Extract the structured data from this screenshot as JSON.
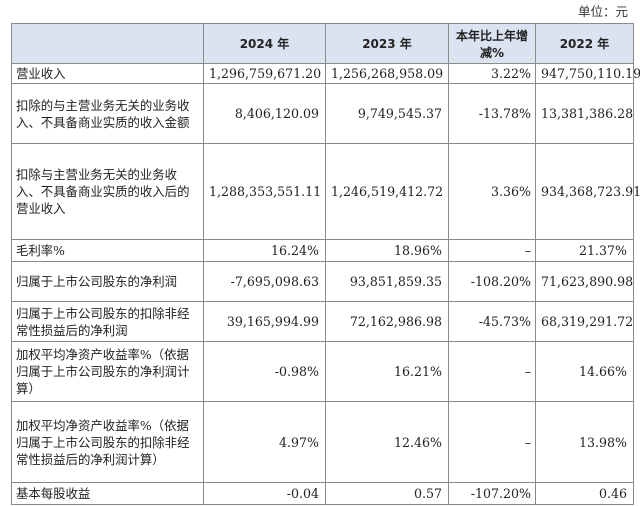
{
  "unit_label": "单位：元",
  "columns": {
    "item": "",
    "y2024": "2024 年",
    "y2023": "2023 年",
    "change": "本年比上年增减%",
    "y2022": "2022 年"
  },
  "rows": [
    {
      "label": "营业收入",
      "y2024": "1,296,759,671.20",
      "y2023": "1,256,268,958.09",
      "change": "3.22%",
      "y2022": "947,750,110.19"
    },
    {
      "label": "扣除的与主营业务无关的业务收入、不具备商业实质的收入金额",
      "y2024": "8,406,120.09",
      "y2023": "9,749,545.37",
      "change": "-13.78%",
      "y2022": "13,381,386.28"
    },
    {
      "label": "扣除与主营业务无关的业务收入、不具备商业实质的收入后的营业收入",
      "y2024": "1,288,353,551.11",
      "y2023": "1,246,519,412.72",
      "change": "3.36%",
      "y2022": "934,368,723.91"
    },
    {
      "label": "毛利率%",
      "y2024": "16.24%",
      "y2023": "18.96%",
      "change": "–",
      "y2022": "21.37%"
    },
    {
      "label": "归属于上市公司股东的净利润",
      "y2024": "-7,695,098.63",
      "y2023": "93,851,859.35",
      "change": "-108.20%",
      "y2022": "71,623,890.98"
    },
    {
      "label": "归属于上市公司股东的扣除非经常性损益后的净利润",
      "y2024": "39,165,994.99",
      "y2023": "72,162,986.98",
      "change": "-45.73%",
      "y2022": "68,319,291.72"
    },
    {
      "label": "加权平均净资产收益率%（依据归属于上市公司股东的净利润计算）",
      "y2024": "-0.98%",
      "y2023": "16.21%",
      "change": "–",
      "y2022": "14.66%"
    },
    {
      "label": "加权平均净资产收益率%（依据归属于上市公司股东的扣除非经常性损益后的净利润计算）",
      "y2024": "4.97%",
      "y2023": "12.46%",
      "change": "–",
      "y2022": "13.98%"
    },
    {
      "label": "基本每股收益",
      "y2024": "-0.04",
      "y2023": "0.57",
      "change": "-107.20%",
      "y2022": "0.46"
    }
  ]
}
